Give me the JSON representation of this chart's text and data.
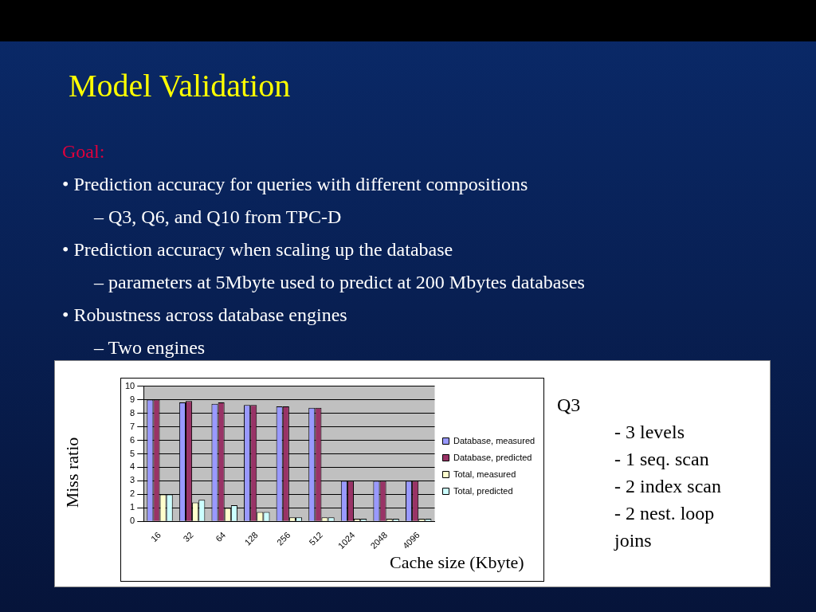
{
  "chart_data": {
    "type": "bar",
    "title": "Model Validation",
    "xlabel": "Cache size (Kbyte)",
    "ylabel": "Miss ratio",
    "categories": [
      "16",
      "32",
      "64",
      "128",
      "256",
      "512",
      "1024",
      "2048",
      "4096"
    ],
    "series": [
      {
        "name": "Database, measured",
        "color": "#9999ff",
        "values": [
          9,
          8.8,
          8.7,
          8.6,
          8.5,
          8.4,
          3,
          3,
          3
        ]
      },
      {
        "name": "Database, predicted",
        "color": "#993366",
        "values": [
          9,
          8.9,
          8.8,
          8.6,
          8.5,
          8.4,
          3,
          3,
          3
        ]
      },
      {
        "name": "Total, measured",
        "color": "#ffffcc",
        "values": [
          2,
          1.4,
          1,
          0.7,
          0.3,
          0.3,
          0.2,
          0.2,
          0.2
        ]
      },
      {
        "name": "Total, predicted",
        "color": "#ccffff",
        "values": [
          2,
          1.6,
          1.2,
          0.7,
          0.3,
          0.3,
          0.2,
          0.2,
          0.2
        ]
      }
    ],
    "ylim": [
      0,
      10
    ],
    "yticks": [
      0,
      1,
      2,
      3,
      4,
      5,
      6,
      7,
      8,
      9,
      10
    ],
    "grid": "y",
    "legend": "right",
    "annotations": [
      "Goal:",
      "•  Prediction accuracy for queries with different compositions",
      "–  Q3, Q6, and Q10 from TPC-D",
      "•  Prediction accuracy when scaling up the database",
      "–  parameters at 5Mbyte used to predict at 200 Mbytes databases",
      "•  Robustness across database engines",
      "–  Two engines",
      "Q3",
      "- 3 levels",
      "- 1 seq. scan",
      "- 2 index scan",
      "- 2 nest. loop joins"
    ]
  }
}
